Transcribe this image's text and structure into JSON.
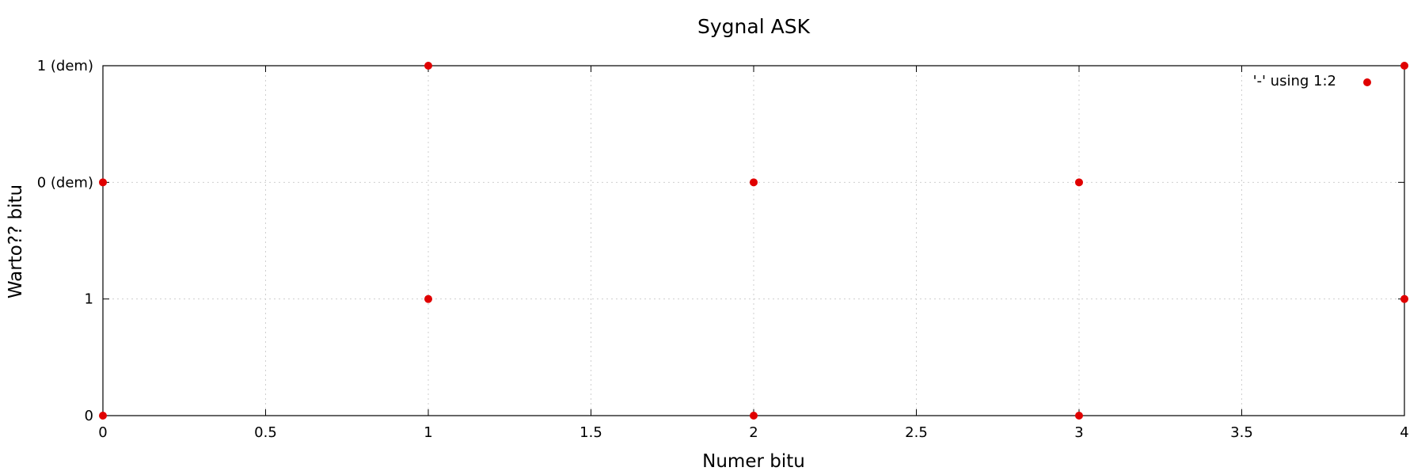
{
  "chart_data": {
    "type": "scatter",
    "title": "Sygnal ASK",
    "xlabel": "Numer bitu",
    "ylabel": "Warto?? bitu",
    "xlim": [
      0,
      4
    ],
    "ylim": [
      0,
      3
    ],
    "xticks": [
      {
        "value": 0,
        "label": "0"
      },
      {
        "value": 0.5,
        "label": "0.5"
      },
      {
        "value": 1,
        "label": "1"
      },
      {
        "value": 1.5,
        "label": "1.5"
      },
      {
        "value": 2,
        "label": "2"
      },
      {
        "value": 2.5,
        "label": "2.5"
      },
      {
        "value": 3,
        "label": "3"
      },
      {
        "value": 3.5,
        "label": "3.5"
      },
      {
        "value": 4,
        "label": "4"
      }
    ],
    "yticks": [
      {
        "value": 0,
        "label": "0"
      },
      {
        "value": 1,
        "label": "1"
      },
      {
        "value": 2,
        "label": "0 (dem)"
      },
      {
        "value": 3,
        "label": "1 (dem)"
      }
    ],
    "grid": true,
    "legend_position": "top-right",
    "series": [
      {
        "name": "'-' using 1:2",
        "color": "#e00000",
        "points": [
          {
            "x": 0,
            "y": 0
          },
          {
            "x": 0,
            "y": 2
          },
          {
            "x": 1,
            "y": 1
          },
          {
            "x": 1,
            "y": 3
          },
          {
            "x": 2,
            "y": 0
          },
          {
            "x": 2,
            "y": 2
          },
          {
            "x": 3,
            "y": 0
          },
          {
            "x": 3,
            "y": 2
          },
          {
            "x": 4,
            "y": 1
          },
          {
            "x": 4,
            "y": 3
          }
        ]
      }
    ]
  }
}
